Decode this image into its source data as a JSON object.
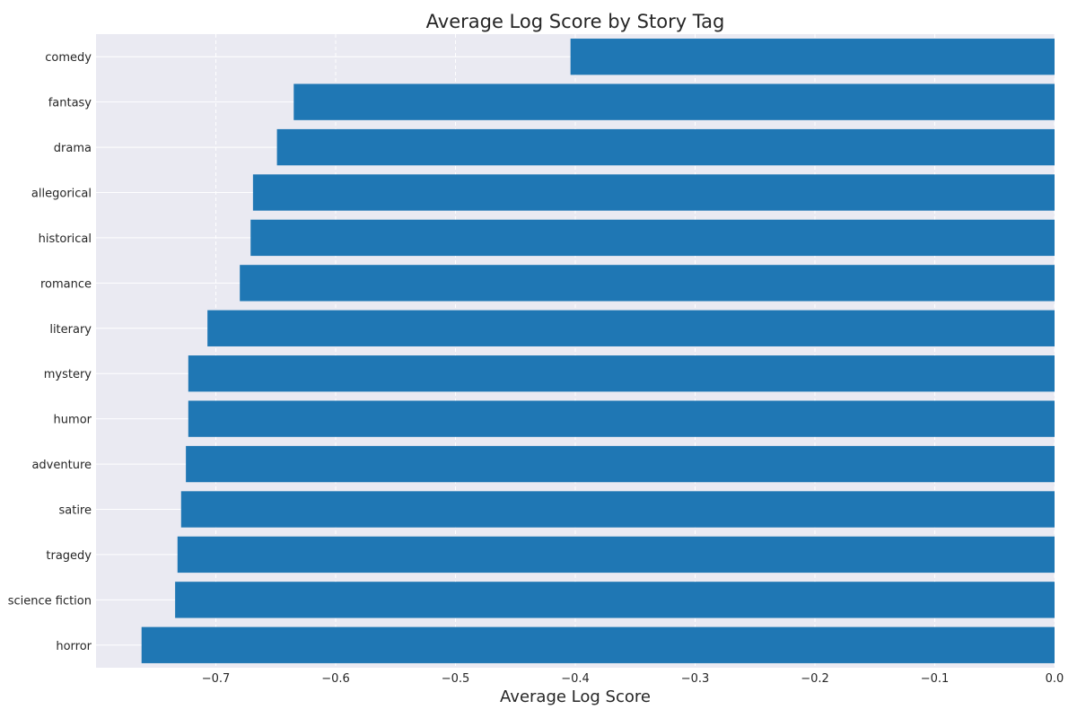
{
  "chart_data": {
    "type": "bar",
    "orientation": "horizontal",
    "title": "Average Log Score by Story Tag",
    "xlabel": "Average Log Score",
    "ylabel": "",
    "categories": [
      "comedy",
      "fantasy",
      "drama",
      "allegorical",
      "historical",
      "romance",
      "literary",
      "mystery",
      "humor",
      "adventure",
      "satire",
      "tragedy",
      "science fiction",
      "horror"
    ],
    "values": [
      -0.404,
      -0.635,
      -0.649,
      -0.669,
      -0.671,
      -0.68,
      -0.707,
      -0.723,
      -0.723,
      -0.725,
      -0.729,
      -0.732,
      -0.734,
      -0.762
    ],
    "xlim": [
      -0.8,
      0.0
    ],
    "xticks": [
      -0.7,
      -0.6,
      -0.5,
      -0.4,
      -0.3,
      -0.2,
      -0.1,
      0.0
    ],
    "xtick_labels": [
      "−0.7",
      "−0.6",
      "−0.5",
      "−0.4",
      "−0.3",
      "−0.2",
      "−0.1",
      "0.0"
    ],
    "grid": true,
    "bar_color": "#1f77b4",
    "background_color": "#eaeaf2"
  }
}
